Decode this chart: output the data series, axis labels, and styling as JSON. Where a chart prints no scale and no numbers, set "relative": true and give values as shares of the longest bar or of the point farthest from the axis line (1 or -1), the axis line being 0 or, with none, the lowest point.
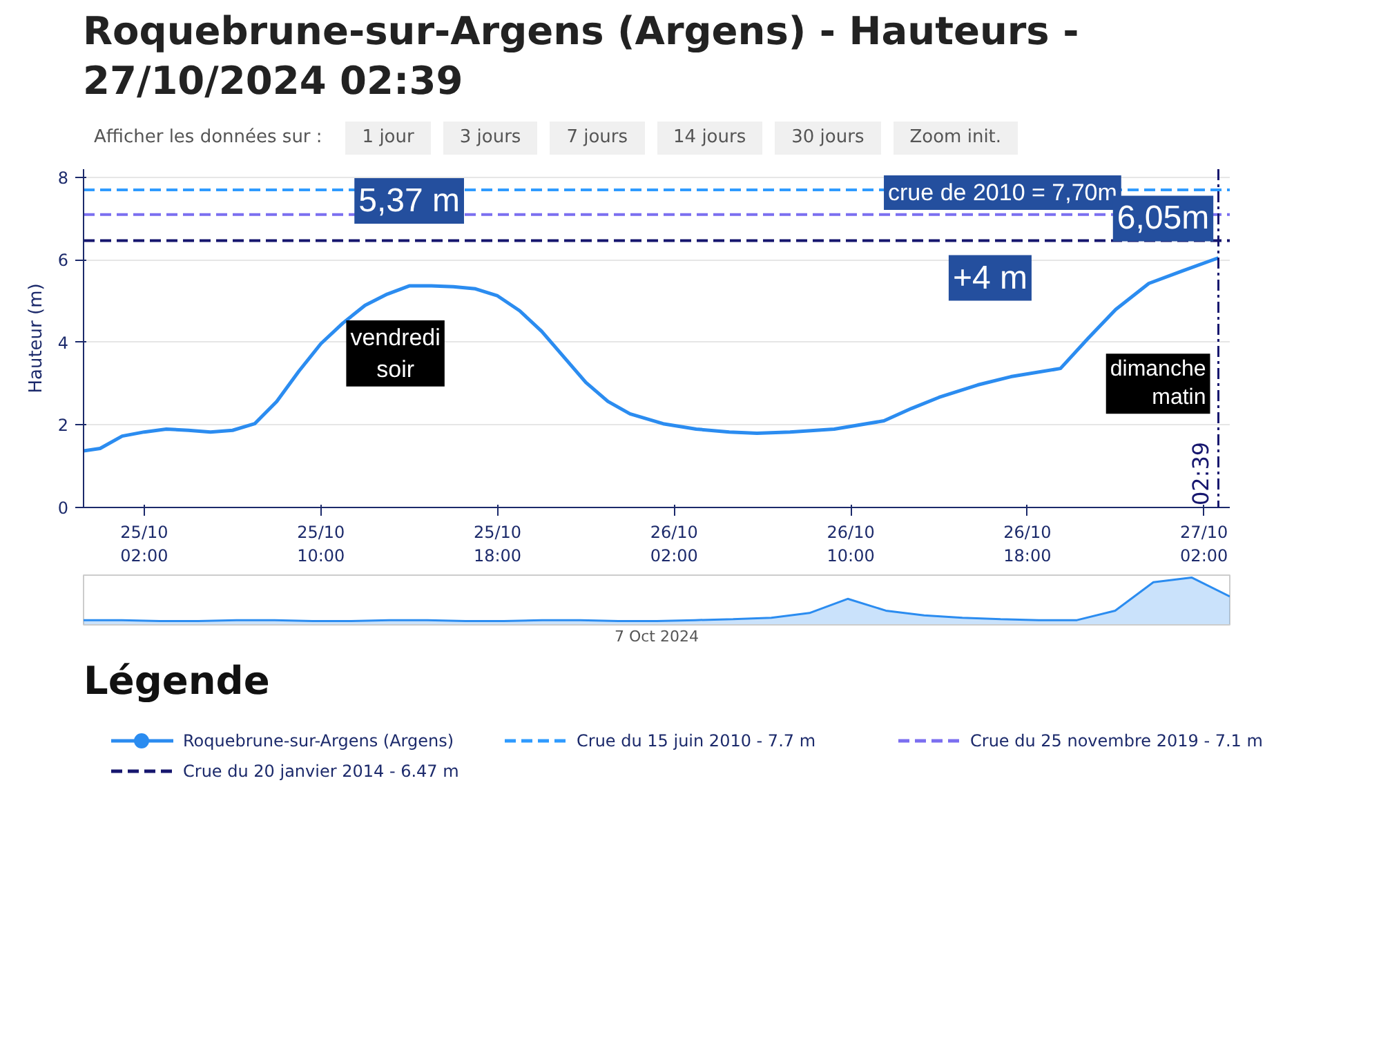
{
  "chart_data": [
    {
      "type": "line",
      "title": "Roquebrune-sur-Argens (Argens) - Hauteurs - 27/10/2024 02:39",
      "ylabel": "Hauteur (m)",
      "legend_title": "Légende",
      "legend": "bottom",
      "grid": "y",
      "x": [
        "2024-10-24T23:15",
        "2024-10-25T00:00",
        "2024-10-25T01:00",
        "2024-10-25T02:00",
        "2024-10-25T03:00",
        "2024-10-25T04:00",
        "2024-10-25T05:00",
        "2024-10-25T06:00",
        "2024-10-25T07:00",
        "2024-10-25T08:00",
        "2024-10-25T09:00",
        "2024-10-25T10:00",
        "2024-10-25T11:00",
        "2024-10-25T12:00",
        "2024-10-25T13:00",
        "2024-10-25T14:00",
        "2024-10-25T15:00",
        "2024-10-25T16:00",
        "2024-10-25T17:00",
        "2024-10-25T18:00",
        "2024-10-25T19:00",
        "2024-10-25T20:00",
        "2024-10-25T21:00",
        "2024-10-25T22:00",
        "2024-10-25T23:00",
        "2024-10-26T00:00",
        "2024-10-26T01:30",
        "2024-10-26T03:00",
        "2024-10-26T04:30",
        "2024-10-26T05:45",
        "2024-10-26T07:15",
        "2024-10-26T09:15",
        "2024-10-26T11:30",
        "2024-10-26T12:45",
        "2024-10-26T14:00",
        "2024-10-26T15:45",
        "2024-10-26T17:15",
        "2024-10-26T19:30",
        "2024-10-26T20:45",
        "2024-10-26T22:00",
        "2024-10-26T23:30",
        "2024-10-27T01:00",
        "2024-10-27T02:39"
      ],
      "series": [
        {
          "name": "Roquebrune-sur-Argens (Argens)",
          "color": "#2b8cf0",
          "values": [
            1.37,
            1.43,
            1.73,
            1.83,
            1.9,
            1.87,
            1.83,
            1.87,
            2.03,
            2.57,
            3.3,
            3.97,
            4.47,
            4.9,
            5.17,
            5.37,
            5.37,
            5.35,
            5.3,
            5.13,
            4.77,
            4.27,
            3.65,
            3.03,
            2.57,
            2.27,
            2.03,
            1.9,
            1.83,
            1.8,
            1.83,
            1.9,
            2.1,
            2.4,
            2.67,
            2.97,
            3.17,
            3.37,
            4.1,
            4.8,
            5.43,
            5.73,
            6.05
          ]
        }
      ],
      "xlim": [
        "2024-10-24T23:15",
        "2024-10-27T03:10"
      ],
      "xticks": [
        {
          "value": "2024-10-25T02:00",
          "label": "25/10\n02:00"
        },
        {
          "value": "2024-10-25T10:00",
          "label": "25/10\n10:00"
        },
        {
          "value": "2024-10-25T18:00",
          "label": "25/10\n18:00"
        },
        {
          "value": "2024-10-26T02:00",
          "label": "26/10\n02:00"
        },
        {
          "value": "2024-10-26T10:00",
          "label": "26/10\n10:00"
        },
        {
          "value": "2024-10-26T18:00",
          "label": "26/10\n18:00"
        },
        {
          "value": "2024-10-27T02:00",
          "label": "27/10\n02:00"
        }
      ],
      "ylim": [
        0,
        8.2
      ],
      "yticks": [
        0,
        2,
        4,
        6,
        8
      ],
      "ref_lines": [
        {
          "axis": "y",
          "value": 7.7,
          "label": "Crue du 15 juin 2010 - 7.7 m",
          "color": "#2f9bff",
          "line_style": "dashed"
        },
        {
          "axis": "y",
          "value": 7.1,
          "label": "Crue du 25 novembre 2019 - 7.1 m",
          "color": "#7b6ff0",
          "line_style": "dashed"
        },
        {
          "axis": "y",
          "value": 6.47,
          "label": "Crue du 20 janvier 2014 - 6.47 m",
          "color": "#16166e",
          "line_style": "dashed"
        },
        {
          "axis": "x",
          "value": "2024-10-27T02:39",
          "label": "02:39",
          "color": "#16166e",
          "line_style": "dashdot"
        }
      ],
      "annotations": [
        "Afficher les données sur :",
        "1 jour",
        "3 jours",
        "7 jours",
        "14 jours",
        "30 jours",
        "Zoom init.",
        {
          "text": "crue de 2010 = 7,70m",
          "x": "2024-10-26T17:30",
          "y": 7.7
        },
        {
          "text": "5,37 m",
          "x": "2024-10-25T14:00",
          "y": 5.37
        },
        {
          "text": "vendredi\nsoir",
          "x": "2024-10-25T14:00",
          "y": 5.37
        },
        {
          "text": "+4 m",
          "x": "2024-10-26T17:15",
          "y": 3.17
        },
        {
          "text": "6,05m",
          "x": "2024-10-27T02:39",
          "y": 6.05
        },
        {
          "text": "dimanche\nmatin",
          "x": "2024-10-27T02:39",
          "y": 3.0
        }
      ]
    },
    {
      "type": "area",
      "relative": true,
      "color": "#2b8cf0",
      "annotations": [
        "7 Oct 2024"
      ],
      "categories": [
        null,
        null,
        null,
        null,
        null,
        null,
        null,
        null,
        null,
        null,
        null,
        null,
        null,
        null,
        null,
        null,
        null,
        null,
        null,
        null,
        null,
        null,
        null,
        null,
        null,
        null,
        null,
        null,
        null,
        null,
        null
      ],
      "values": [
        0.1,
        0.1,
        0.08,
        0.08,
        0.1,
        0.1,
        0.08,
        0.08,
        0.1,
        0.1,
        0.08,
        0.08,
        0.1,
        0.1,
        0.08,
        0.08,
        0.1,
        0.12,
        0.15,
        0.25,
        0.55,
        0.3,
        0.2,
        0.15,
        0.12,
        0.1,
        0.1,
        0.3,
        0.9,
        1.0,
        0.6
      ]
    }
  ]
}
